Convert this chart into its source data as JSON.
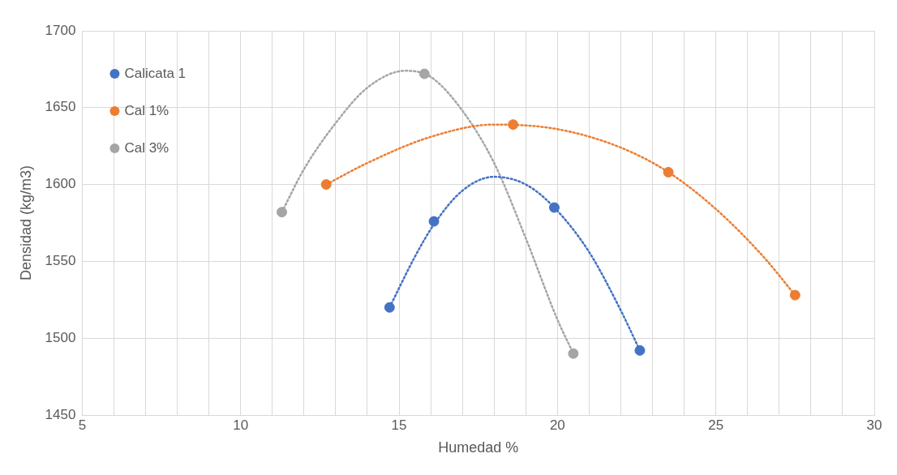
{
  "chart_data": {
    "type": "scatter",
    "xlabel": "Humedad %",
    "ylabel": "Densidad (kg/m3)",
    "xlim": [
      5,
      30
    ],
    "xticks": [
      5,
      {
        "value": 6,
        "label": null
      },
      {
        "value": 7,
        "label": null
      },
      {
        "value": 8,
        "label": null
      },
      {
        "value": 9,
        "label": null
      },
      10,
      {
        "value": 11,
        "label": null
      },
      {
        "value": 12,
        "label": null
      },
      {
        "value": 13,
        "label": null
      },
      {
        "value": 14,
        "label": null
      },
      15,
      {
        "value": 16,
        "label": null
      },
      {
        "value": 17,
        "label": null
      },
      {
        "value": 18,
        "label": null
      },
      {
        "value": 19,
        "label": null
      },
      20,
      {
        "value": 21,
        "label": null
      },
      {
        "value": 22,
        "label": null
      },
      {
        "value": 23,
        "label": null
      },
      {
        "value": 24,
        "label": null
      },
      25,
      {
        "value": 26,
        "label": null
      },
      {
        "value": 27,
        "label": null
      },
      {
        "value": 28,
        "label": null
      },
      {
        "value": 29,
        "label": null
      },
      30
    ],
    "ylim": [
      1450,
      1700
    ],
    "yticks": [
      1450,
      1500,
      1550,
      1600,
      1650,
      1700
    ],
    "grid": true,
    "legend": "top left",
    "marker": "circle",
    "series": [
      {
        "name": "Calicata 1",
        "color": "#4472c4",
        "x": [
          14.7,
          16.1,
          19.9,
          22.6
        ],
        "values": [
          1520,
          1576,
          1585,
          1492
        ]
      },
      {
        "name": "Cal 1%",
        "color": "#ed7d31",
        "x": [
          12.7,
          18.6,
          23.5,
          27.5
        ],
        "values": [
          1600,
          1639,
          1608,
          1528
        ]
      },
      {
        "name": "Cal 3%",
        "color": "#a5a5a5",
        "x": [
          11.3,
          15.8,
          20.5
        ],
        "values": [
          1582,
          1672,
          1490
        ]
      },
      {
        "type": "line",
        "color": "#4472c4",
        "marker": "none",
        "line_style": "dotted",
        "x": [
          14.7,
          15.5,
          16.1,
          17,
          18,
          19,
          19.9,
          21,
          22,
          22.6
        ],
        "values": [
          1520,
          1553,
          1574,
          1596,
          1605,
          1600,
          1585,
          1556,
          1518,
          1492
        ]
      },
      {
        "type": "line",
        "color": "#ed7d31",
        "marker": "none",
        "line_style": "dotted",
        "x": [
          12.7,
          14,
          16,
          18,
          20,
          22,
          23.5,
          25,
          26.5,
          27.5
        ],
        "values": [
          1600,
          1614,
          1631,
          1639,
          1636,
          1624,
          1608,
          1584,
          1553,
          1528
        ]
      },
      {
        "type": "line",
        "color": "#a5a5a5",
        "marker": "none",
        "line_style": "dotted",
        "x": [
          11.3,
          12,
          13,
          14,
          15.2,
          16,
          17,
          18,
          19,
          20,
          20.5
        ],
        "values": [
          1582,
          1610,
          1640,
          1663,
          1674,
          1670,
          1648,
          1614,
          1565,
          1512,
          1490
        ]
      }
    ]
  }
}
